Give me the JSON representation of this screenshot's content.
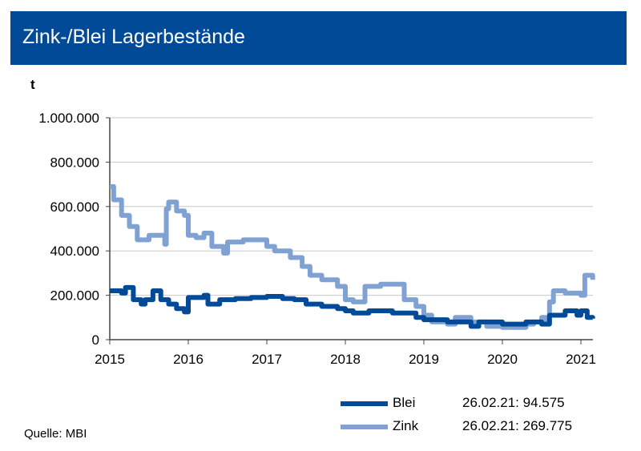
{
  "header": {
    "title": "Zink-/Blei Lagerbestände"
  },
  "source": "Quelle: MBI",
  "chart_data": {
    "type": "line",
    "title": "Zink-/Blei Lagerbestände",
    "ylabel": "t",
    "xlim": [
      2015,
      2021.2
    ],
    "ylim": [
      0,
      1000000
    ],
    "grid": true,
    "legend_position": "bottom-right",
    "xticks": [
      "2015",
      "2016",
      "2017",
      "2018",
      "2019",
      "2020",
      "2021"
    ],
    "yticks": [
      "0",
      "200.000",
      "400.000",
      "600.000",
      "800.000",
      "1.000.000"
    ],
    "colors": {
      "Blei": "#004a97",
      "Zink": "#7fa2d3"
    },
    "series": [
      {
        "name": "Blei",
        "legend_value": "26.02.21: 94.575",
        "x": [
          2015,
          2015.15,
          2015.2,
          2015.3,
          2015.4,
          2015.45,
          2015.55,
          2015.65,
          2015.75,
          2015.85,
          2015.95,
          2016.0,
          2016.2,
          2016.25,
          2016.4,
          2016.6,
          2016.8,
          2017.0,
          2017.2,
          2017.35,
          2017.5,
          2017.7,
          2017.9,
          2018.0,
          2018.1,
          2018.3,
          2018.6,
          2018.9,
          2019.0,
          2019.3,
          2019.6,
          2019.7,
          2020.0,
          2020.3,
          2020.5,
          2020.6,
          2020.8,
          2020.95,
          2021.0,
          2021.08,
          2021.15
        ],
        "y": [
          220000,
          210000,
          235000,
          180000,
          160000,
          180000,
          220000,
          180000,
          160000,
          140000,
          125000,
          190000,
          200000,
          160000,
          180000,
          185000,
          190000,
          195000,
          185000,
          180000,
          160000,
          150000,
          140000,
          130000,
          120000,
          130000,
          120000,
          100000,
          90000,
          80000,
          60000,
          80000,
          70000,
          80000,
          70000,
          110000,
          130000,
          110000,
          130000,
          100000,
          94575
        ]
      },
      {
        "name": "Zink",
        "legend_value": "26.02.21: 269.775",
        "x": [
          2015,
          2015.05,
          2015.15,
          2015.25,
          2015.35,
          2015.5,
          2015.7,
          2015.72,
          2015.75,
          2015.85,
          2015.95,
          2016.0,
          2016.1,
          2016.2,
          2016.3,
          2016.45,
          2016.5,
          2016.7,
          2016.9,
          2017.0,
          2017.1,
          2017.3,
          2017.45,
          2017.55,
          2017.7,
          2017.8,
          2017.9,
          2018.0,
          2018.1,
          2018.25,
          2018.45,
          2018.6,
          2018.75,
          2018.9,
          2019.0,
          2019.1,
          2019.3,
          2019.4,
          2019.6,
          2019.8,
          2020.0,
          2020.3,
          2020.4,
          2020.5,
          2020.55,
          2020.6,
          2020.65,
          2020.8,
          2021.0,
          2021.05,
          2021.15
        ],
        "y": [
          690000,
          630000,
          560000,
          510000,
          450000,
          470000,
          430000,
          590000,
          620000,
          580000,
          560000,
          470000,
          460000,
          480000,
          420000,
          390000,
          440000,
          450000,
          450000,
          420000,
          400000,
          370000,
          330000,
          290000,
          270000,
          270000,
          240000,
          180000,
          170000,
          240000,
          250000,
          250000,
          180000,
          150000,
          110000,
          80000,
          70000,
          100000,
          80000,
          60000,
          55000,
          70000,
          80000,
          100000,
          80000,
          170000,
          220000,
          210000,
          200000,
          290000,
          269775
        ]
      }
    ]
  }
}
